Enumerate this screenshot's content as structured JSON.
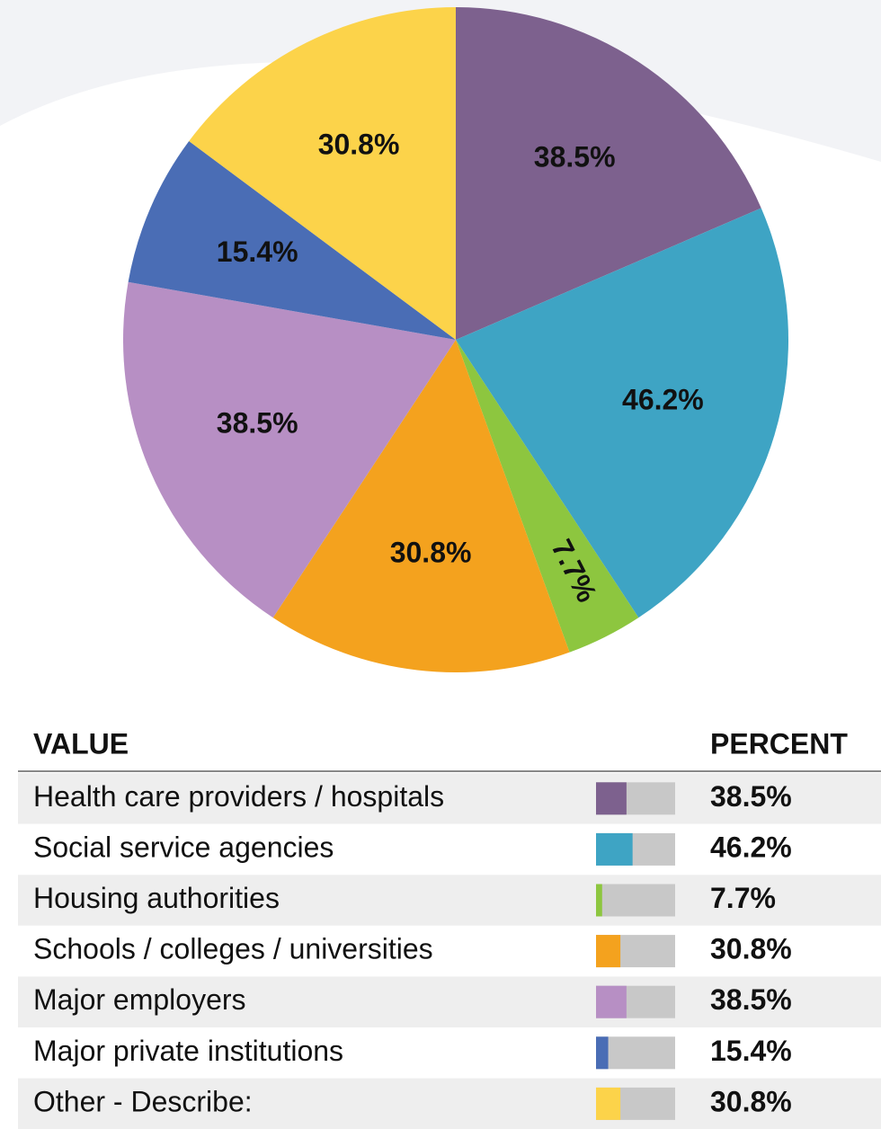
{
  "chart_data": {
    "type": "pie",
    "categories": [
      "Health care providers / hospitals",
      "Social service agencies",
      "Housing authorities",
      "Schools / colleges / universities",
      "Major employers",
      "Major private institutions",
      "Other - Describe:"
    ],
    "values": [
      38.5,
      46.2,
      7.7,
      30.8,
      38.5,
      15.4,
      30.8
    ],
    "value_labels": [
      "38.5%",
      "46.2%",
      "7.7%",
      "30.8%",
      "38.5%",
      "15.4%",
      "30.8%"
    ],
    "colors": [
      "#7d618e",
      "#3ea4c4",
      "#8dc63f",
      "#f4a21e",
      "#b78fc4",
      "#4a6db5",
      "#fcd34a"
    ],
    "legend_headers": [
      "VALUE",
      "PERCENT"
    ]
  }
}
